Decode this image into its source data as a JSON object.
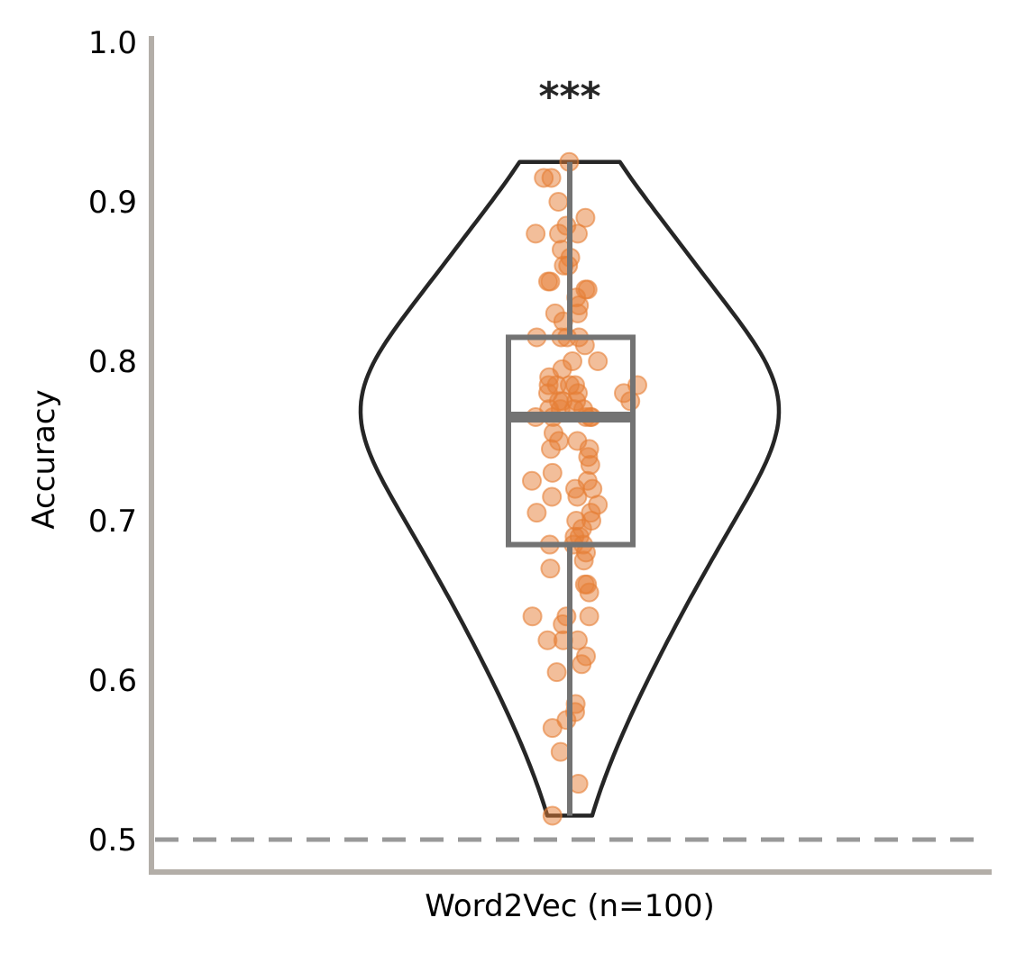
{
  "chart_data": {
    "type": "violin",
    "ylabel": "Accuracy",
    "xlabel": "Word2Vec (n=100)",
    "categories": [
      "Word2Vec (n=100)"
    ],
    "ylim": [
      0.48,
      1.0
    ],
    "yticks": [
      "0.5",
      "0.6",
      "0.7",
      "0.8",
      "0.9",
      "1.0"
    ],
    "ytick_values": [
      0.5,
      0.6,
      0.7,
      0.8,
      0.9,
      1.0
    ],
    "reference_line": 0.5,
    "significance": "***",
    "box": {
      "q1": 0.685,
      "median": 0.765,
      "q3": 0.815,
      "whisker_low": 0.515,
      "whisker_high": 0.925
    },
    "violin_range": [
      0.515,
      0.925
    ],
    "points": [
      {
        "jitter": -0.96,
        "y": 0.915
      },
      {
        "jitter": -0.68,
        "y": 0.915
      },
      {
        "jitter": -0.02,
        "y": 0.925
      },
      {
        "jitter": -0.12,
        "y": 0.885
      },
      {
        "jitter": -0.42,
        "y": 0.9
      },
      {
        "jitter": 0.58,
        "y": 0.89
      },
      {
        "jitter": -1.26,
        "y": 0.88
      },
      {
        "jitter": -0.4,
        "y": 0.88
      },
      {
        "jitter": 0.3,
        "y": 0.88
      },
      {
        "jitter": -0.3,
        "y": 0.87
      },
      {
        "jitter": 0.02,
        "y": 0.865
      },
      {
        "jitter": -0.22,
        "y": 0.86
      },
      {
        "jitter": -0.06,
        "y": 0.86
      },
      {
        "jitter": -0.8,
        "y": 0.85
      },
      {
        "jitter": -0.72,
        "y": 0.85
      },
      {
        "jitter": 0.58,
        "y": 0.845
      },
      {
        "jitter": 0.66,
        "y": 0.845
      },
      {
        "jitter": 0.24,
        "y": 0.84
      },
      {
        "jitter": 0.34,
        "y": 0.835
      },
      {
        "jitter": 0.3,
        "y": 0.83
      },
      {
        "jitter": -0.54,
        "y": 0.83
      },
      {
        "jitter": -0.24,
        "y": 0.825
      },
      {
        "jitter": -0.32,
        "y": 0.815
      },
      {
        "jitter": -0.1,
        "y": 0.815
      },
      {
        "jitter": 0.34,
        "y": 0.815
      },
      {
        "jitter": -1.22,
        "y": 0.815
      },
      {
        "jitter": 0.56,
        "y": 0.81
      },
      {
        "jitter": 1.04,
        "y": 0.8
      },
      {
        "jitter": 0.1,
        "y": 0.8
      },
      {
        "jitter": -0.28,
        "y": 0.795
      },
      {
        "jitter": -0.76,
        "y": 0.79
      },
      {
        "jitter": -0.78,
        "y": 0.785
      },
      {
        "jitter": -0.48,
        "y": 0.785
      },
      {
        "jitter": 0.0,
        "y": 0.785
      },
      {
        "jitter": 0.2,
        "y": 0.785
      },
      {
        "jitter": 2.0,
        "y": 0.78
      },
      {
        "jitter": 2.5,
        "y": 0.785
      },
      {
        "jitter": 2.24,
        "y": 0.775
      },
      {
        "jitter": 0.3,
        "y": 0.78
      },
      {
        "jitter": -0.8,
        "y": 0.78
      },
      {
        "jitter": -0.4,
        "y": 0.775
      },
      {
        "jitter": -0.26,
        "y": 0.775
      },
      {
        "jitter": 0.24,
        "y": 0.775
      },
      {
        "jitter": -0.34,
        "y": 0.77
      },
      {
        "jitter": -0.76,
        "y": 0.77
      },
      {
        "jitter": 0.16,
        "y": 0.77
      },
      {
        "jitter": 0.5,
        "y": 0.77
      },
      {
        "jitter": -0.62,
        "y": 0.765
      },
      {
        "jitter": 0.76,
        "y": 0.765
      },
      {
        "jitter": 0.8,
        "y": 0.765
      },
      {
        "jitter": -1.26,
        "y": 0.765
      },
      {
        "jitter": 0.6,
        "y": 0.765
      },
      {
        "jitter": -0.6,
        "y": 0.755
      },
      {
        "jitter": -0.4,
        "y": 0.75
      },
      {
        "jitter": 0.28,
        "y": 0.75
      },
      {
        "jitter": -0.7,
        "y": 0.745
      },
      {
        "jitter": 0.72,
        "y": 0.745
      },
      {
        "jitter": 0.68,
        "y": 0.74
      },
      {
        "jitter": 0.76,
        "y": 0.735
      },
      {
        "jitter": -0.64,
        "y": 0.73
      },
      {
        "jitter": -1.4,
        "y": 0.725
      },
      {
        "jitter": 0.66,
        "y": 0.725
      },
      {
        "jitter": 0.2,
        "y": 0.72
      },
      {
        "jitter": 0.84,
        "y": 0.72
      },
      {
        "jitter": 0.28,
        "y": 0.715
      },
      {
        "jitter": -0.66,
        "y": 0.715
      },
      {
        "jitter": 1.04,
        "y": 0.71
      },
      {
        "jitter": 0.78,
        "y": 0.705
      },
      {
        "jitter": -1.22,
        "y": 0.705
      },
      {
        "jitter": 0.24,
        "y": 0.7
      },
      {
        "jitter": 0.8,
        "y": 0.7
      },
      {
        "jitter": 0.46,
        "y": 0.695
      },
      {
        "jitter": 0.18,
        "y": 0.69
      },
      {
        "jitter": 0.36,
        "y": 0.69
      },
      {
        "jitter": -0.74,
        "y": 0.685
      },
      {
        "jitter": 0.14,
        "y": 0.685
      },
      {
        "jitter": 0.5,
        "y": 0.685
      },
      {
        "jitter": 0.6,
        "y": 0.68
      },
      {
        "jitter": 0.52,
        "y": 0.675
      },
      {
        "jitter": -0.72,
        "y": 0.67
      },
      {
        "jitter": 0.56,
        "y": 0.66
      },
      {
        "jitter": 0.64,
        "y": 0.66
      },
      {
        "jitter": 0.72,
        "y": 0.655
      },
      {
        "jitter": -1.38,
        "y": 0.64
      },
      {
        "jitter": -0.12,
        "y": 0.64
      },
      {
        "jitter": 0.72,
        "y": 0.64
      },
      {
        "jitter": -0.26,
        "y": 0.635
      },
      {
        "jitter": -0.24,
        "y": 0.625
      },
      {
        "jitter": -0.82,
        "y": 0.625
      },
      {
        "jitter": 0.3,
        "y": 0.625
      },
      {
        "jitter": 0.6,
        "y": 0.615
      },
      {
        "jitter": 0.44,
        "y": 0.61
      },
      {
        "jitter": -0.48,
        "y": 0.605
      },
      {
        "jitter": 0.22,
        "y": 0.585
      },
      {
        "jitter": 0.2,
        "y": 0.58
      },
      {
        "jitter": -0.12,
        "y": 0.575
      },
      {
        "jitter": -0.64,
        "y": 0.57
      },
      {
        "jitter": -0.34,
        "y": 0.555
      },
      {
        "jitter": 0.32,
        "y": 0.535
      },
      {
        "jitter": -0.64,
        "y": 0.515
      }
    ],
    "grid": false,
    "colors": {
      "violin_stroke": "#262626",
      "box_stroke": "#737373",
      "points": "#e67e35",
      "axis": "#b3aea8",
      "reference_line": "#999999",
      "text": "#000000"
    }
  }
}
